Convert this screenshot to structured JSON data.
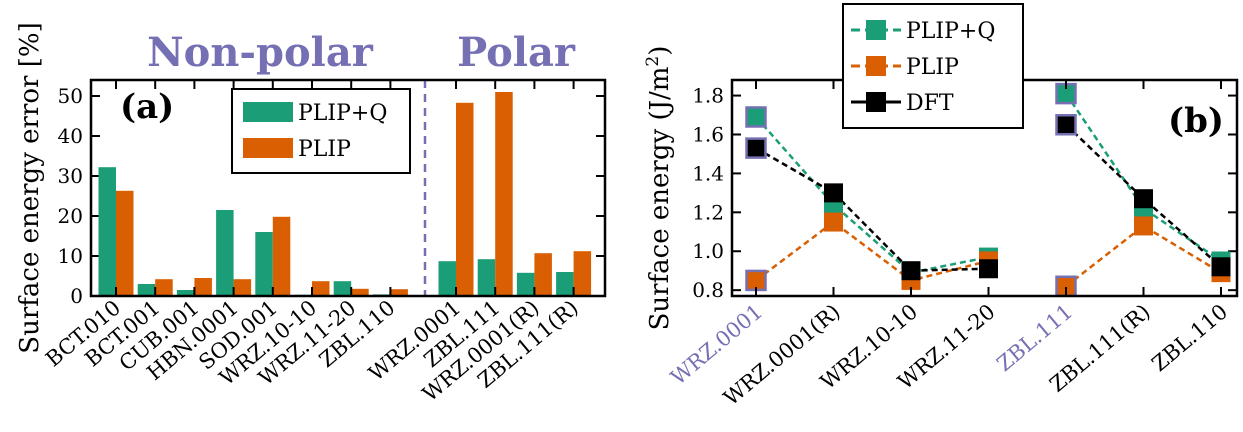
{
  "colors": {
    "plip_q": "#1b9e77",
    "plip": "#d95f02",
    "dft": "#000000",
    "polar_highlight": "#7570b3",
    "frame": "#000000"
  },
  "chart_data": [
    {
      "type": "bar",
      "panel_label": "(a)",
      "group_headings": [
        "Non-polar",
        "Polar"
      ],
      "ylabel": "Surface energy error [%]",
      "ylim": [
        0,
        54
      ],
      "yticks": [
        0,
        10,
        20,
        30,
        40,
        50
      ],
      "categories": [
        "BCT.010",
        "BCT.001",
        "CUB.001",
        "HBN.0001",
        "SOD.001",
        "WRZ.10-10",
        "WRZ.11-20",
        "ZBL.110",
        "WRZ.0001",
        "ZBL.111",
        "WRZ.0001(R)",
        "ZBL.111(R)"
      ],
      "nonpolar_count": 8,
      "series": [
        {
          "name": "PLIP+Q",
          "color": "#1b9e77",
          "values": [
            32.2,
            3.0,
            1.5,
            21.5,
            16.0,
            0.3,
            3.7,
            0.4,
            8.7,
            9.2,
            5.8,
            6.0
          ]
        },
        {
          "name": "PLIP",
          "color": "#d95f02",
          "values": [
            26.3,
            4.2,
            4.5,
            4.2,
            19.8,
            3.7,
            1.8,
            1.7,
            48.3,
            51.0,
            10.7,
            11.2
          ]
        }
      ],
      "legend_position": "top-right",
      "separator": "dashed line between non-polar and polar surfaces"
    },
    {
      "type": "line",
      "panel_label": "(b)",
      "ylabel": "Surface energy (J/m²)",
      "ylabel_parts": {
        "main": "Surface energy (J/m",
        "sup": "2",
        "end": ")"
      },
      "ylim": [
        0.77,
        1.88
      ],
      "yticks": [
        0.8,
        1.0,
        1.2,
        1.4,
        1.6,
        1.8
      ],
      "ytick_labels": [
        "0.8",
        "1.0",
        "1.2",
        "1.4",
        "1.6",
        "1.8"
      ],
      "categories": [
        "WRZ.0001",
        "WRZ.0001(R)",
        "WRZ.10-10",
        "WRZ.11-20",
        "ZBL.111",
        "ZBL.111(R)",
        "ZBL.110"
      ],
      "highlighted_categories": [
        "WRZ.0001",
        "ZBL.111"
      ],
      "segments": [
        [
          0,
          1,
          2,
          3
        ],
        [
          4,
          5,
          6
        ]
      ],
      "series": [
        {
          "name": "PLIP+Q",
          "color": "#1b9e77",
          "style": "dashed",
          "values": [
            1.69,
            1.24,
            0.89,
            0.97,
            1.81,
            1.22,
            0.95
          ]
        },
        {
          "name": "PLIP",
          "color": "#d95f02",
          "style": "dashed",
          "values": [
            0.85,
            1.15,
            0.85,
            0.95,
            0.82,
            1.13,
            0.89
          ]
        },
        {
          "name": "DFT",
          "color": "#000000",
          "style": "dashed",
          "values": [
            1.53,
            1.3,
            0.9,
            0.91,
            1.65,
            1.27,
            0.92
          ]
        }
      ],
      "legend_position": "top, above plot"
    }
  ]
}
